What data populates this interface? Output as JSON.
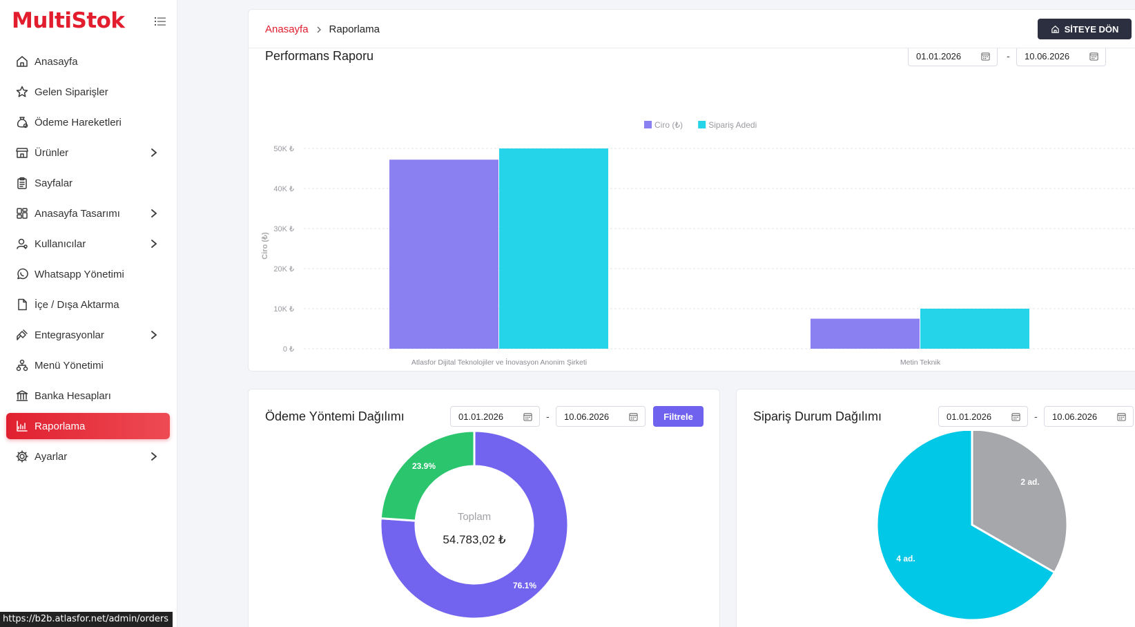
{
  "sidebar": {
    "logo": "MultiStok",
    "items": [
      {
        "label": "Anasayfa",
        "icon": "home-icon",
        "has_children": false,
        "active": false
      },
      {
        "label": "Gelen Siparişler",
        "icon": "star-icon",
        "has_children": false,
        "active": false
      },
      {
        "label": "Ödeme Hareketleri",
        "icon": "money-bag-icon",
        "has_children": false,
        "active": false
      },
      {
        "label": "Ürünler",
        "icon": "store-icon",
        "has_children": true,
        "active": false
      },
      {
        "label": "Sayfalar",
        "icon": "clipboard-icon",
        "has_children": false,
        "active": false
      },
      {
        "label": "Anasayfa Tasarımı",
        "icon": "layout-grid-icon",
        "has_children": true,
        "active": false
      },
      {
        "label": "Kullanıcılar",
        "icon": "user-icon",
        "has_children": true,
        "active": false
      },
      {
        "label": "Whatsapp Yönetimi",
        "icon": "whatsapp-icon",
        "has_children": false,
        "active": false
      },
      {
        "label": "İçe / Dışa Aktarma",
        "icon": "file-icon",
        "has_children": false,
        "active": false
      },
      {
        "label": "Entegrasyonlar",
        "icon": "plug-icon",
        "has_children": true,
        "active": false
      },
      {
        "label": "Menü Yönetimi",
        "icon": "sitemap-icon",
        "has_children": false,
        "active": false
      },
      {
        "label": "Banka Hesapları",
        "icon": "bank-icon",
        "has_children": false,
        "active": false
      },
      {
        "label": "Raporlama",
        "icon": "chart-icon",
        "has_children": false,
        "active": true
      },
      {
        "label": "Ayarlar",
        "icon": "gear-icon",
        "has_children": true,
        "active": false
      }
    ]
  },
  "header": {
    "breadcrumb_home": "Anasayfa",
    "breadcrumb_current": "Raporlama",
    "site_button": "SİTEYE DÖN"
  },
  "performance": {
    "title": "Performans Raporu",
    "date_from": "01.01.2026",
    "date_to": "10.06.2026",
    "separator": "-"
  },
  "payment": {
    "title": "Ödeme Yöntemi Dağılımı",
    "date_from": "01.01.2026",
    "date_to": "10.06.2026",
    "separator": "-",
    "filter_button": "Filtrele",
    "total_label": "Toplam",
    "total_value": "54.783,02 ₺"
  },
  "order_status": {
    "title": "Sipariş Durum Dağılımı",
    "date_from": "01.01.2026",
    "date_to": "10.06.2026",
    "separator": "-"
  },
  "status_bar_url": "https://b2b.atlasfor.net/admin/orders",
  "chart_data": [
    {
      "type": "bar",
      "title": "",
      "xlabel": "",
      "ylabel": "Ciro (₺)",
      "categories": [
        "Atlasfor Dijital Teknolojiler ve İnovasyon Anonim Şirketi",
        "Metin Teknik"
      ],
      "series": [
        {
          "name": "Ciro (₺)",
          "values": [
            47200,
            7500
          ],
          "color": "#8b80f1"
        },
        {
          "name": "Sipariş Adedi",
          "values": [
            50000,
            10000
          ],
          "color": "#26d4ea"
        }
      ],
      "ylim": [
        0,
        50000
      ],
      "yticks": [
        "0 ₺",
        "10K ₺",
        "20K ₺",
        "30K ₺",
        "40K ₺",
        "50K ₺"
      ],
      "grid": true,
      "legend": "top-center"
    },
    {
      "type": "pie",
      "title": "",
      "labels": [
        "",
        ""
      ],
      "values": [
        76.1,
        23.9
      ],
      "value_labels": [
        "76.1%",
        "23.9%"
      ],
      "colors": [
        "#7264ee",
        "#2ac56d"
      ],
      "donut": true
    },
    {
      "type": "pie",
      "title": "",
      "labels": [
        "",
        ""
      ],
      "values": [
        4,
        2
      ],
      "value_labels": [
        "4 ad.",
        "2 ad."
      ],
      "colors": [
        "#00c8e6",
        "#a6a7ab"
      ],
      "donut": false
    }
  ]
}
